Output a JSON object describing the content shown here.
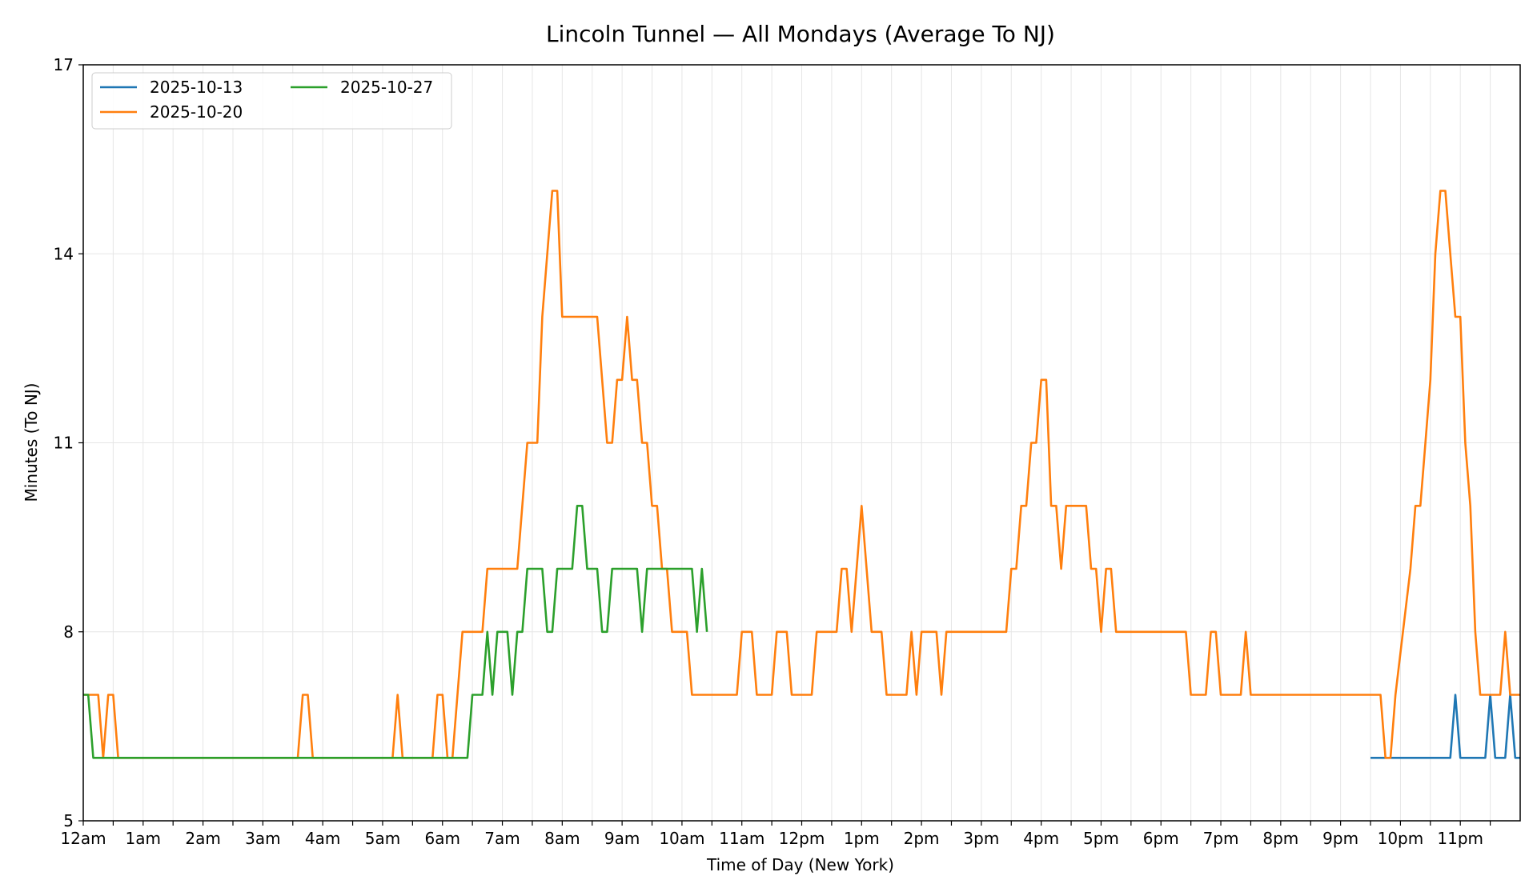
{
  "chart_data": {
    "type": "line",
    "title": "Lincoln Tunnel — All Mondays (Average To NJ)",
    "xlabel": "Time of Day (New York)",
    "ylabel": "Minutes (To NJ)",
    "xlim": [
      0,
      1440
    ],
    "ylim": [
      5,
      17
    ],
    "yticks": [
      5,
      8,
      11,
      14,
      17
    ],
    "xtick_labels": [
      "12am",
      "1am",
      "2am",
      "3am",
      "4am",
      "5am",
      "6am",
      "7am",
      "8am",
      "9am",
      "10am",
      "11am",
      "12pm",
      "1pm",
      "2pm",
      "3pm",
      "4pm",
      "5pm",
      "6pm",
      "7pm",
      "8pm",
      "9pm",
      "10pm",
      "11pm"
    ],
    "grid": true,
    "legend": "top-left",
    "series": [
      {
        "name": "2025-10-13",
        "color": "#1f77b4",
        "points": [
          [
            1290,
            6
          ],
          [
            1370,
            6
          ],
          [
            1375,
            7
          ],
          [
            1380,
            6
          ],
          [
            1405,
            6
          ],
          [
            1410,
            7
          ],
          [
            1415,
            6
          ],
          [
            1425,
            6
          ],
          [
            1430,
            7
          ],
          [
            1435,
            6
          ],
          [
            1445,
            6
          ],
          [
            1450,
            7
          ]
        ]
      },
      {
        "name": "2025-10-20",
        "color": "#ff7f0e",
        "points": [
          [
            0,
            7
          ],
          [
            15,
            7
          ],
          [
            20,
            6
          ],
          [
            25,
            7
          ],
          [
            30,
            7
          ],
          [
            35,
            6
          ],
          [
            215,
            6
          ],
          [
            220,
            7
          ],
          [
            225,
            7
          ],
          [
            230,
            6
          ],
          [
            310,
            6
          ],
          [
            315,
            7
          ],
          [
            320,
            6
          ],
          [
            350,
            6
          ],
          [
            355,
            7
          ],
          [
            360,
            7
          ],
          [
            365,
            6
          ],
          [
            370,
            6
          ],
          [
            380,
            8
          ],
          [
            400,
            8
          ],
          [
            405,
            9
          ],
          [
            435,
            9
          ],
          [
            445,
            11
          ],
          [
            455,
            11
          ],
          [
            460,
            13
          ],
          [
            470,
            15
          ],
          [
            475,
            15
          ],
          [
            480,
            13
          ],
          [
            515,
            13
          ],
          [
            525,
            11
          ],
          [
            530,
            11
          ],
          [
            535,
            12
          ],
          [
            540,
            12
          ],
          [
            545,
            13
          ],
          [
            550,
            12
          ],
          [
            555,
            12
          ],
          [
            560,
            11
          ],
          [
            565,
            11
          ],
          [
            570,
            10
          ],
          [
            575,
            10
          ],
          [
            580,
            9
          ],
          [
            585,
            9
          ],
          [
            590,
            8
          ],
          [
            605,
            8
          ],
          [
            610,
            7
          ],
          [
            655,
            7
          ],
          [
            660,
            8
          ],
          [
            670,
            8
          ],
          [
            675,
            7
          ],
          [
            690,
            7
          ],
          [
            695,
            8
          ],
          [
            705,
            8
          ],
          [
            710,
            7
          ],
          [
            730,
            7
          ],
          [
            735,
            8
          ],
          [
            755,
            8
          ],
          [
            760,
            9
          ],
          [
            765,
            9
          ],
          [
            770,
            8
          ],
          [
            775,
            9
          ],
          [
            780,
            10
          ],
          [
            790,
            8
          ],
          [
            800,
            8
          ],
          [
            805,
            7
          ],
          [
            825,
            7
          ],
          [
            830,
            8
          ],
          [
            835,
            7
          ],
          [
            840,
            8
          ],
          [
            855,
            8
          ],
          [
            860,
            7
          ],
          [
            865,
            8
          ],
          [
            925,
            8
          ],
          [
            930,
            9
          ],
          [
            935,
            9
          ],
          [
            940,
            10
          ],
          [
            945,
            10
          ],
          [
            950,
            11
          ],
          [
            955,
            11
          ],
          [
            960,
            12
          ],
          [
            965,
            12
          ],
          [
            970,
            10
          ],
          [
            975,
            10
          ],
          [
            980,
            9
          ],
          [
            985,
            10
          ],
          [
            1005,
            10
          ],
          [
            1010,
            9
          ],
          [
            1015,
            9
          ],
          [
            1020,
            8
          ],
          [
            1025,
            9
          ],
          [
            1030,
            9
          ],
          [
            1035,
            8
          ],
          [
            1105,
            8
          ],
          [
            1110,
            7
          ],
          [
            1125,
            7
          ],
          [
            1130,
            8
          ],
          [
            1135,
            8
          ],
          [
            1140,
            7
          ],
          [
            1160,
            7
          ],
          [
            1165,
            8
          ],
          [
            1170,
            7
          ],
          [
            1300,
            7
          ],
          [
            1305,
            6
          ],
          [
            1310,
            6
          ],
          [
            1315,
            7
          ],
          [
            1330,
            9
          ],
          [
            1335,
            10
          ],
          [
            1340,
            10
          ],
          [
            1345,
            11
          ],
          [
            1350,
            12
          ],
          [
            1355,
            14
          ],
          [
            1360,
            15
          ],
          [
            1365,
            15
          ],
          [
            1370,
            14
          ],
          [
            1375,
            13
          ],
          [
            1380,
            13
          ],
          [
            1385,
            11
          ],
          [
            1390,
            10
          ],
          [
            1395,
            8
          ],
          [
            1400,
            7
          ],
          [
            1420,
            7
          ],
          [
            1425,
            8
          ],
          [
            1430,
            7
          ],
          [
            1440,
            7
          ]
        ]
      },
      {
        "name": "2025-10-27",
        "color": "#2ca02c",
        "points": [
          [
            0,
            7
          ],
          [
            5,
            7
          ],
          [
            10,
            6
          ],
          [
            385,
            6
          ],
          [
            390,
            7
          ],
          [
            400,
            7
          ],
          [
            405,
            8
          ],
          [
            410,
            7
          ],
          [
            415,
            8
          ],
          [
            425,
            8
          ],
          [
            430,
            7
          ],
          [
            435,
            8
          ],
          [
            440,
            8
          ],
          [
            445,
            9
          ],
          [
            460,
            9
          ],
          [
            465,
            8
          ],
          [
            470,
            8
          ],
          [
            475,
            9
          ],
          [
            490,
            9
          ],
          [
            495,
            10
          ],
          [
            500,
            10
          ],
          [
            505,
            9
          ],
          [
            515,
            9
          ],
          [
            520,
            8
          ],
          [
            525,
            8
          ],
          [
            530,
            9
          ],
          [
            555,
            9
          ],
          [
            560,
            8
          ],
          [
            565,
            9
          ],
          [
            610,
            9
          ],
          [
            615,
            8
          ],
          [
            620,
            9
          ],
          [
            625,
            8
          ]
        ]
      }
    ]
  }
}
